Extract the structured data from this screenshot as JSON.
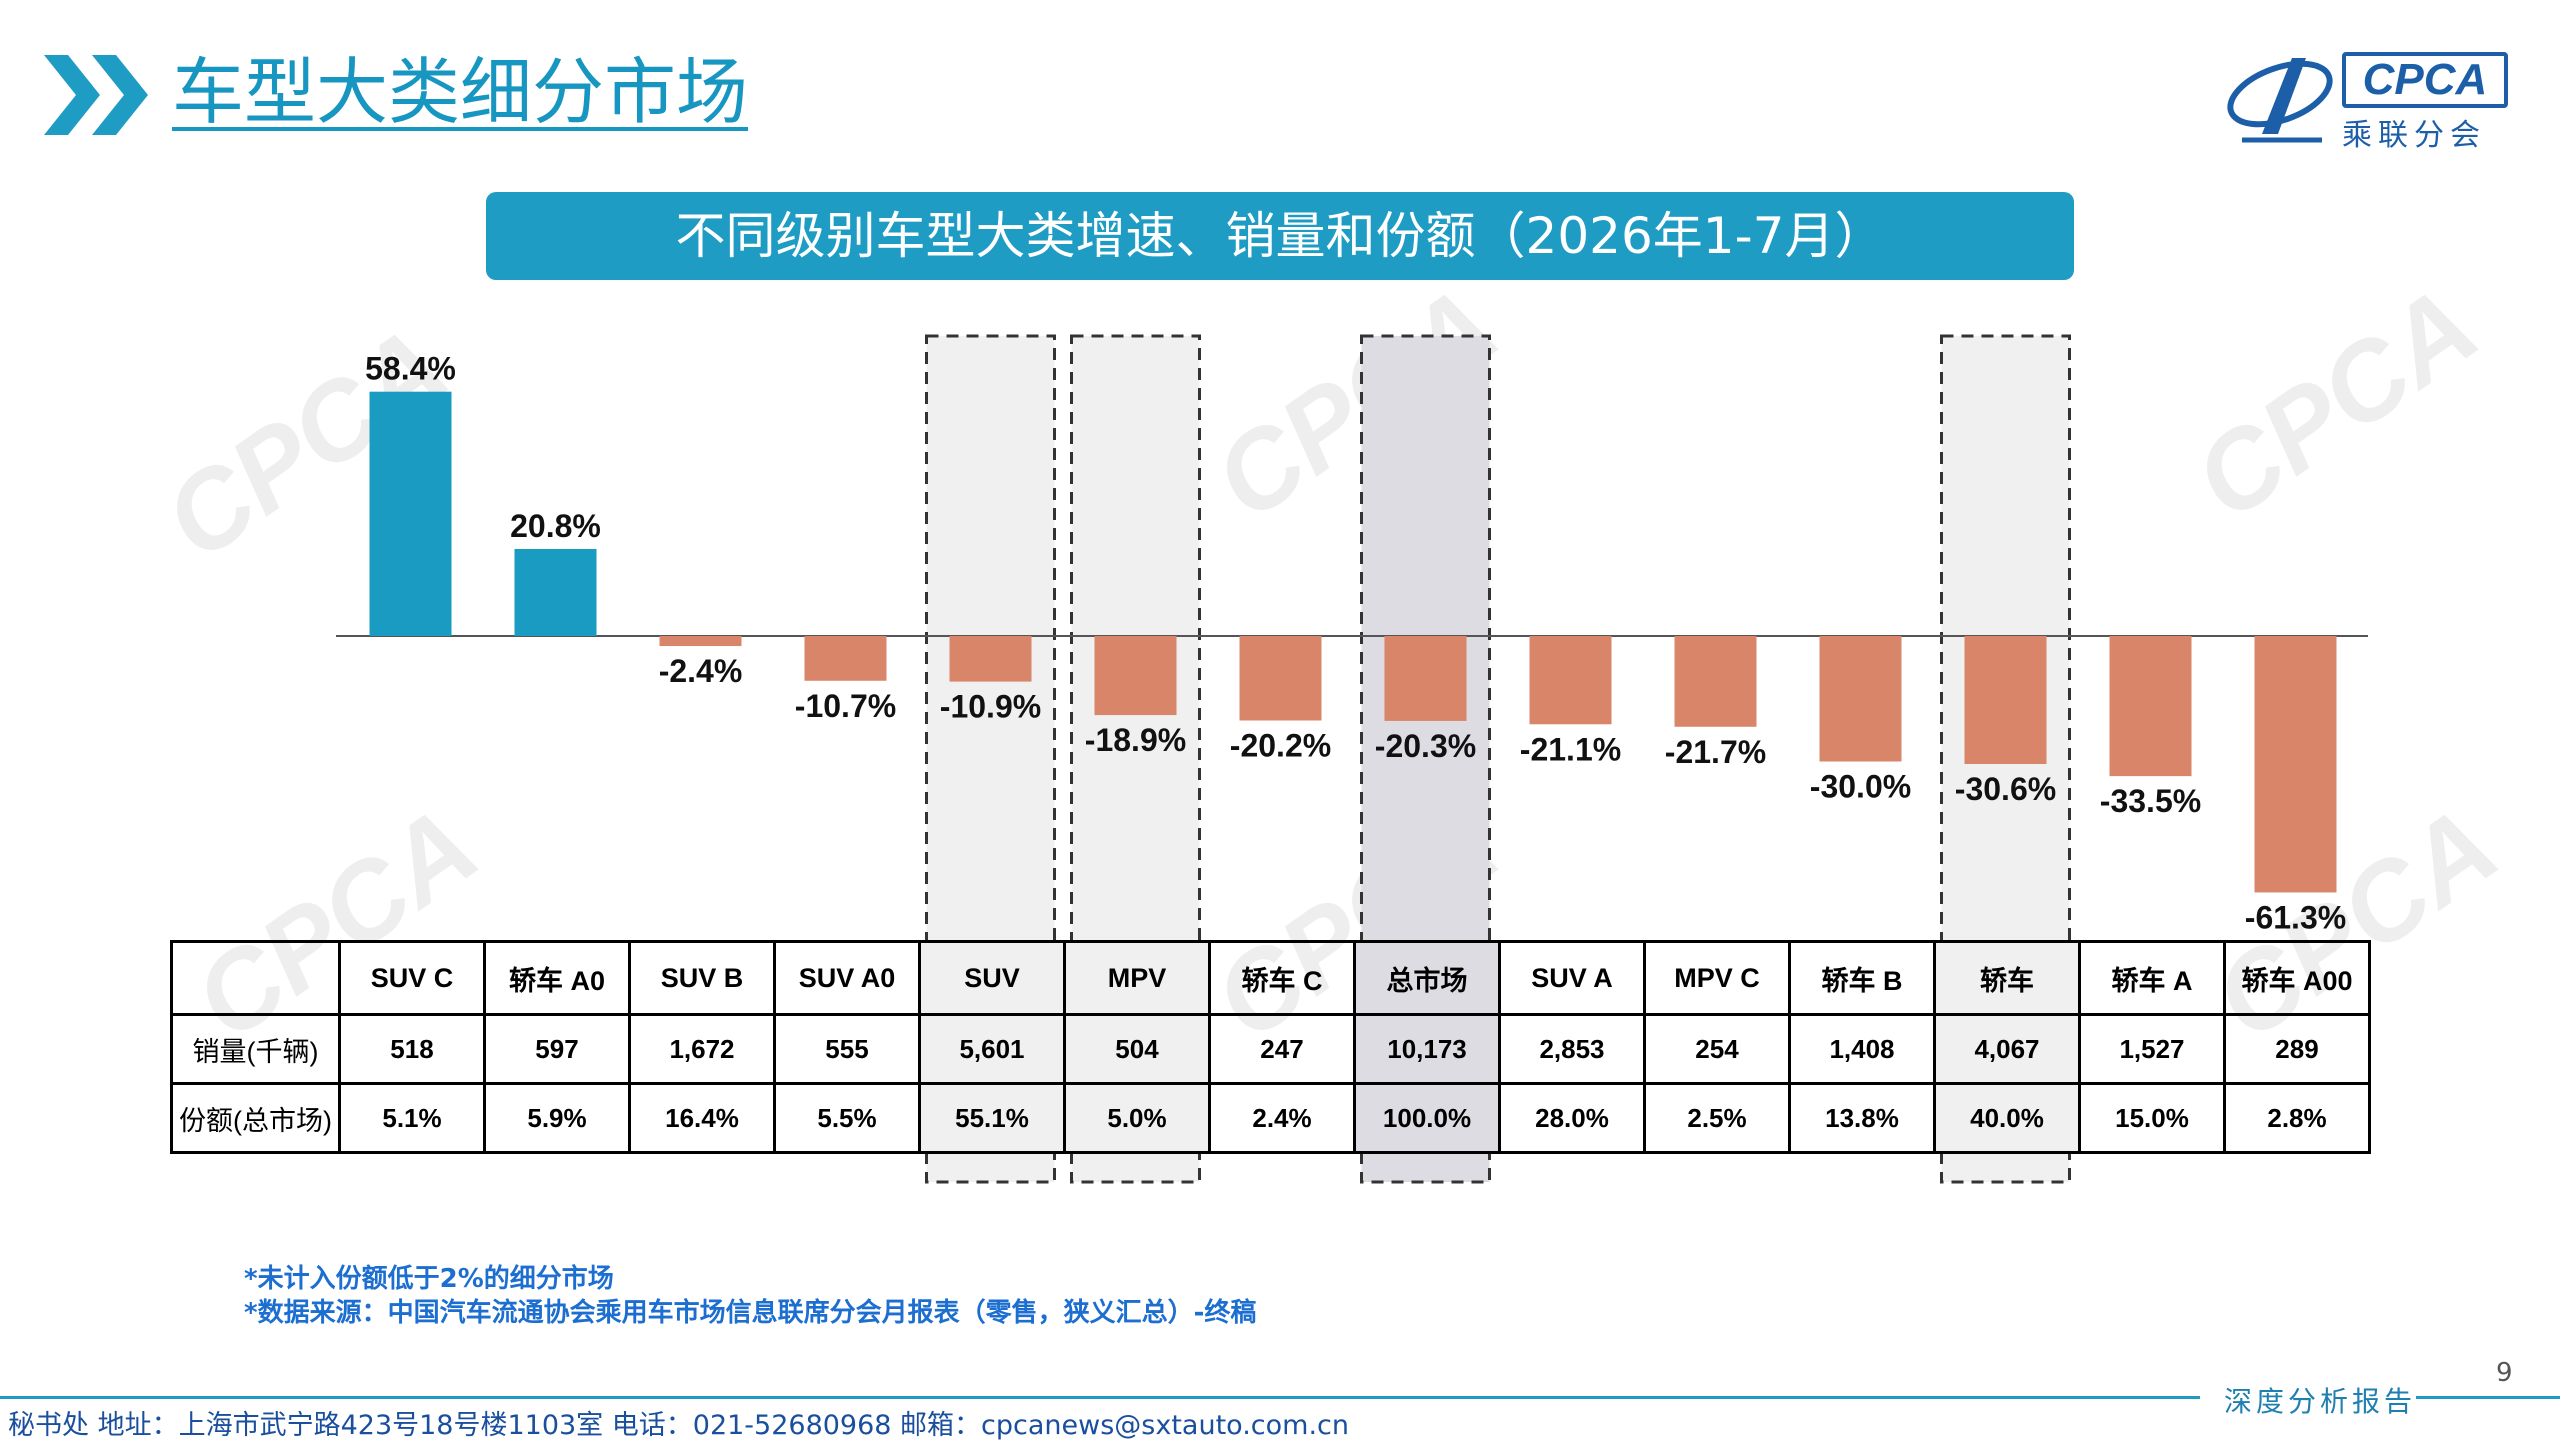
{
  "header": {
    "title": "车型大类细分市场",
    "logo": {
      "text": "CPCA",
      "subtext": "乘联分会"
    }
  },
  "chart_data": {
    "type": "bar",
    "title": "不同级别车型大类增速、销量和份额（2026年1-7月）",
    "categories": [
      "SUV C",
      "轿车 A0",
      "SUV B",
      "SUV A0",
      "SUV",
      "MPV",
      "轿车 C",
      "总市场",
      "SUV A",
      "MPV C",
      "轿车 B",
      "轿车",
      "轿车 A",
      "轿车 A00"
    ],
    "values": [
      58.4,
      20.8,
      -2.4,
      -10.7,
      -10.9,
      -18.9,
      -20.2,
      -20.3,
      -21.1,
      -21.7,
      -30.0,
      -30.6,
      -33.5,
      -61.3
    ],
    "value_labels": [
      "58.4%",
      "20.8%",
      "-2.4%",
      "-10.7%",
      "-10.9%",
      "-18.9%",
      "-20.2%",
      "-20.3%",
      "-21.1%",
      "-21.7%",
      "-30.0%",
      "-30.6%",
      "-33.5%",
      "-61.3%"
    ],
    "positive_color": "#1a9cc2",
    "negative_color": "#d9856a",
    "highlighted": [
      "SUV",
      "MPV",
      "总市场",
      "轿车"
    ],
    "highlight_fill": "#f0f0f0",
    "total_highlight_fill": "#dcdce2",
    "ylim": [
      -62,
      60
    ],
    "grid": false,
    "legend": "none"
  },
  "table": {
    "row_labels": [
      "销量(千辆)",
      "份额(总市场)"
    ],
    "sales": [
      "518",
      "597",
      "1,672",
      "555",
      "5,601",
      "504",
      "247",
      "10,173",
      "2,853",
      "254",
      "1,408",
      "4,067",
      "1,527",
      "289"
    ],
    "shares": [
      "5.1%",
      "5.9%",
      "16.4%",
      "5.5%",
      "55.1%",
      "5.0%",
      "2.4%",
      "100.0%",
      "28.0%",
      "2.5%",
      "13.8%",
      "40.0%",
      "15.0%",
      "2.8%"
    ]
  },
  "notes": [
    "*未计入份额低于2%的细分市场",
    "*数据来源：中国汽车流通协会乘用车市场信息联席分会月报表（零售，狭义汇总）-终稿"
  ],
  "page_number": "9",
  "footer": {
    "report_label": "深度分析报告",
    "contact": "秘书处  地址：上海市武宁路423号18号楼1103室  电话：021-52680968   邮箱：cpcanews@sxtauto.com.cn"
  }
}
